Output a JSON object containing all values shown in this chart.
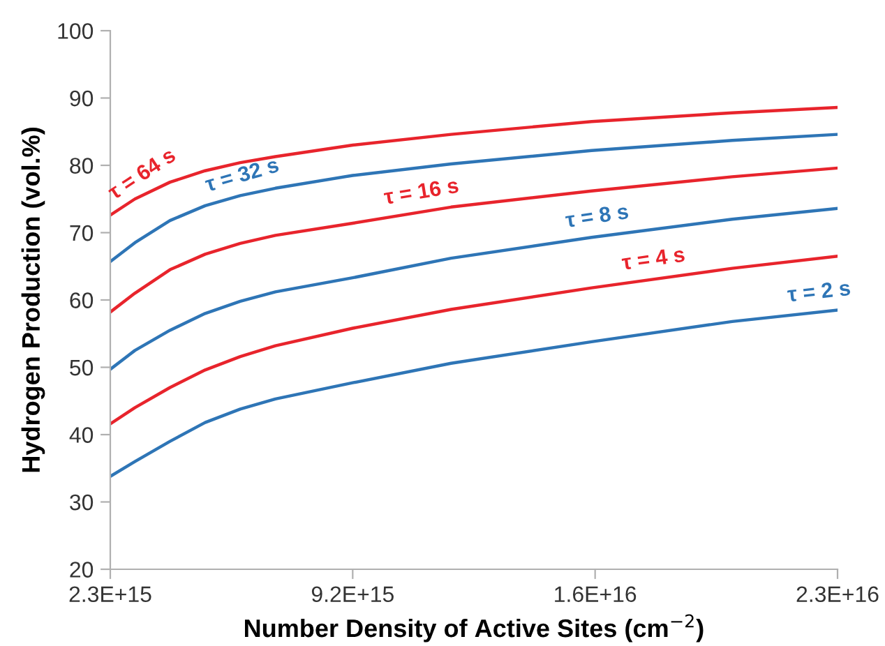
{
  "chart_data": {
    "type": "line",
    "xlabel": "Number Density of Active Sites (cm$^{−2}$)",
    "ylabel": "Hydrogen Production (vol.%)",
    "x": [
      2300000000000000.0,
      3000000000000000.0,
      4000000000000000.0,
      5000000000000000.0,
      6000000000000000.0,
      7000000000000000.0,
      9200000000000000.0,
      1.2e+16,
      1.6e+16,
      2e+16,
      2.3e+16
    ],
    "series": [
      {
        "name": "τ = 64 s",
        "color": "#e8242c",
        "values": [
          72.6,
          75,
          77.5,
          79.2,
          80.4,
          81.3,
          83,
          84.6,
          86.5,
          87.8,
          88.6
        ]
      },
      {
        "name": "τ = 32 s",
        "color": "#2e75b6",
        "values": [
          65.7,
          68.5,
          71.8,
          74,
          75.5,
          76.6,
          78.5,
          80.2,
          82.2,
          83.7,
          84.6
        ]
      },
      {
        "name": "τ = 16 s",
        "color": "#e8242c",
        "values": [
          58.2,
          61,
          64.5,
          66.8,
          68.4,
          69.6,
          71.4,
          73.8,
          76.2,
          78.3,
          79.6
        ]
      },
      {
        "name": "τ = 8 s",
        "color": "#2e75b6",
        "values": [
          49.7,
          52.5,
          55.5,
          58,
          59.8,
          61.2,
          63.3,
          66.2,
          69.3,
          72,
          73.6
        ]
      },
      {
        "name": "τ = 4 s",
        "color": "#e8242c",
        "values": [
          41.6,
          44,
          47,
          49.6,
          51.6,
          53.2,
          55.8,
          58.6,
          61.8,
          64.7,
          66.5
        ]
      },
      {
        "name": "τ = 2 s",
        "color": "#2e75b6",
        "values": [
          33.8,
          36,
          39,
          41.8,
          43.8,
          45.3,
          47.7,
          50.6,
          53.8,
          56.8,
          58.5
        ]
      }
    ],
    "xlim": [
      2300000000000000.0,
      2.3e+16
    ],
    "xticks": [
      {
        "value": 2300000000000000.0,
        "label": "2.3E+15"
      },
      {
        "value": 9200000000000000.0,
        "label": "9.2E+15"
      },
      {
        "value": 1.61e+16,
        "label": "1.6E+16"
      },
      {
        "value": 2.3e+16,
        "label": "2.3E+16"
      }
    ],
    "ylim": [
      20,
      100
    ],
    "yticks": [
      20,
      30,
      40,
      50,
      60,
      70,
      80,
      90,
      100
    ],
    "grid": false,
    "legend": false,
    "marker": "none",
    "line_style": "solid"
  }
}
